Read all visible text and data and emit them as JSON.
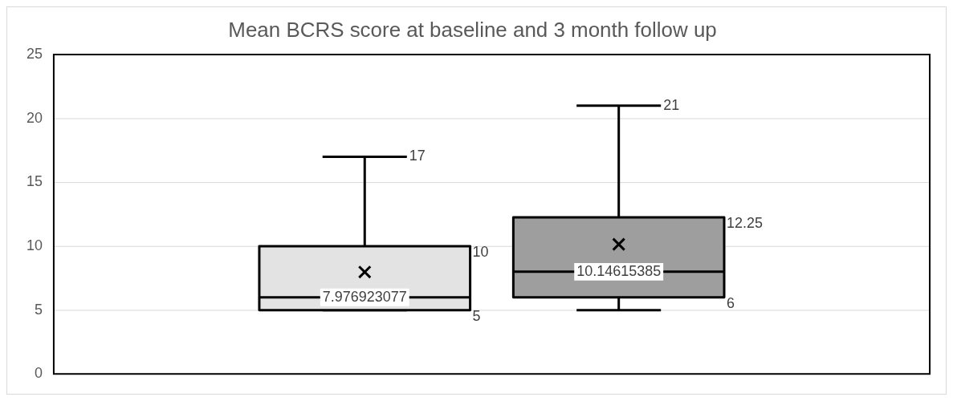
{
  "chart_data": {
    "type": "box",
    "title": "Mean BCRS score at baseline and 3 month follow up",
    "categories": [
      null
    ],
    "series": [
      {
        "color": "#e3e3e3",
        "boxes": [
          {
            "low": 5,
            "q1": 5,
            "median": 6,
            "q3": 10,
            "high": 17,
            "mean": 7.976923077
          }
        ]
      },
      {
        "color": "#9e9e9e",
        "boxes": [
          {
            "low": 5,
            "q1": 6,
            "median": 8,
            "q3": 12.25,
            "high": 21,
            "mean": 10.14615385
          }
        ]
      }
    ],
    "ylim": [
      0,
      25
    ],
    "yticks": [
      0,
      5,
      10,
      15,
      20,
      25
    ],
    "grid": "y",
    "tick_labels": "y",
    "legend": false,
    "annotations": [
      "17",
      "10",
      "5",
      "7.976923077",
      "21",
      "12.25",
      "6",
      "10.14615385"
    ]
  }
}
